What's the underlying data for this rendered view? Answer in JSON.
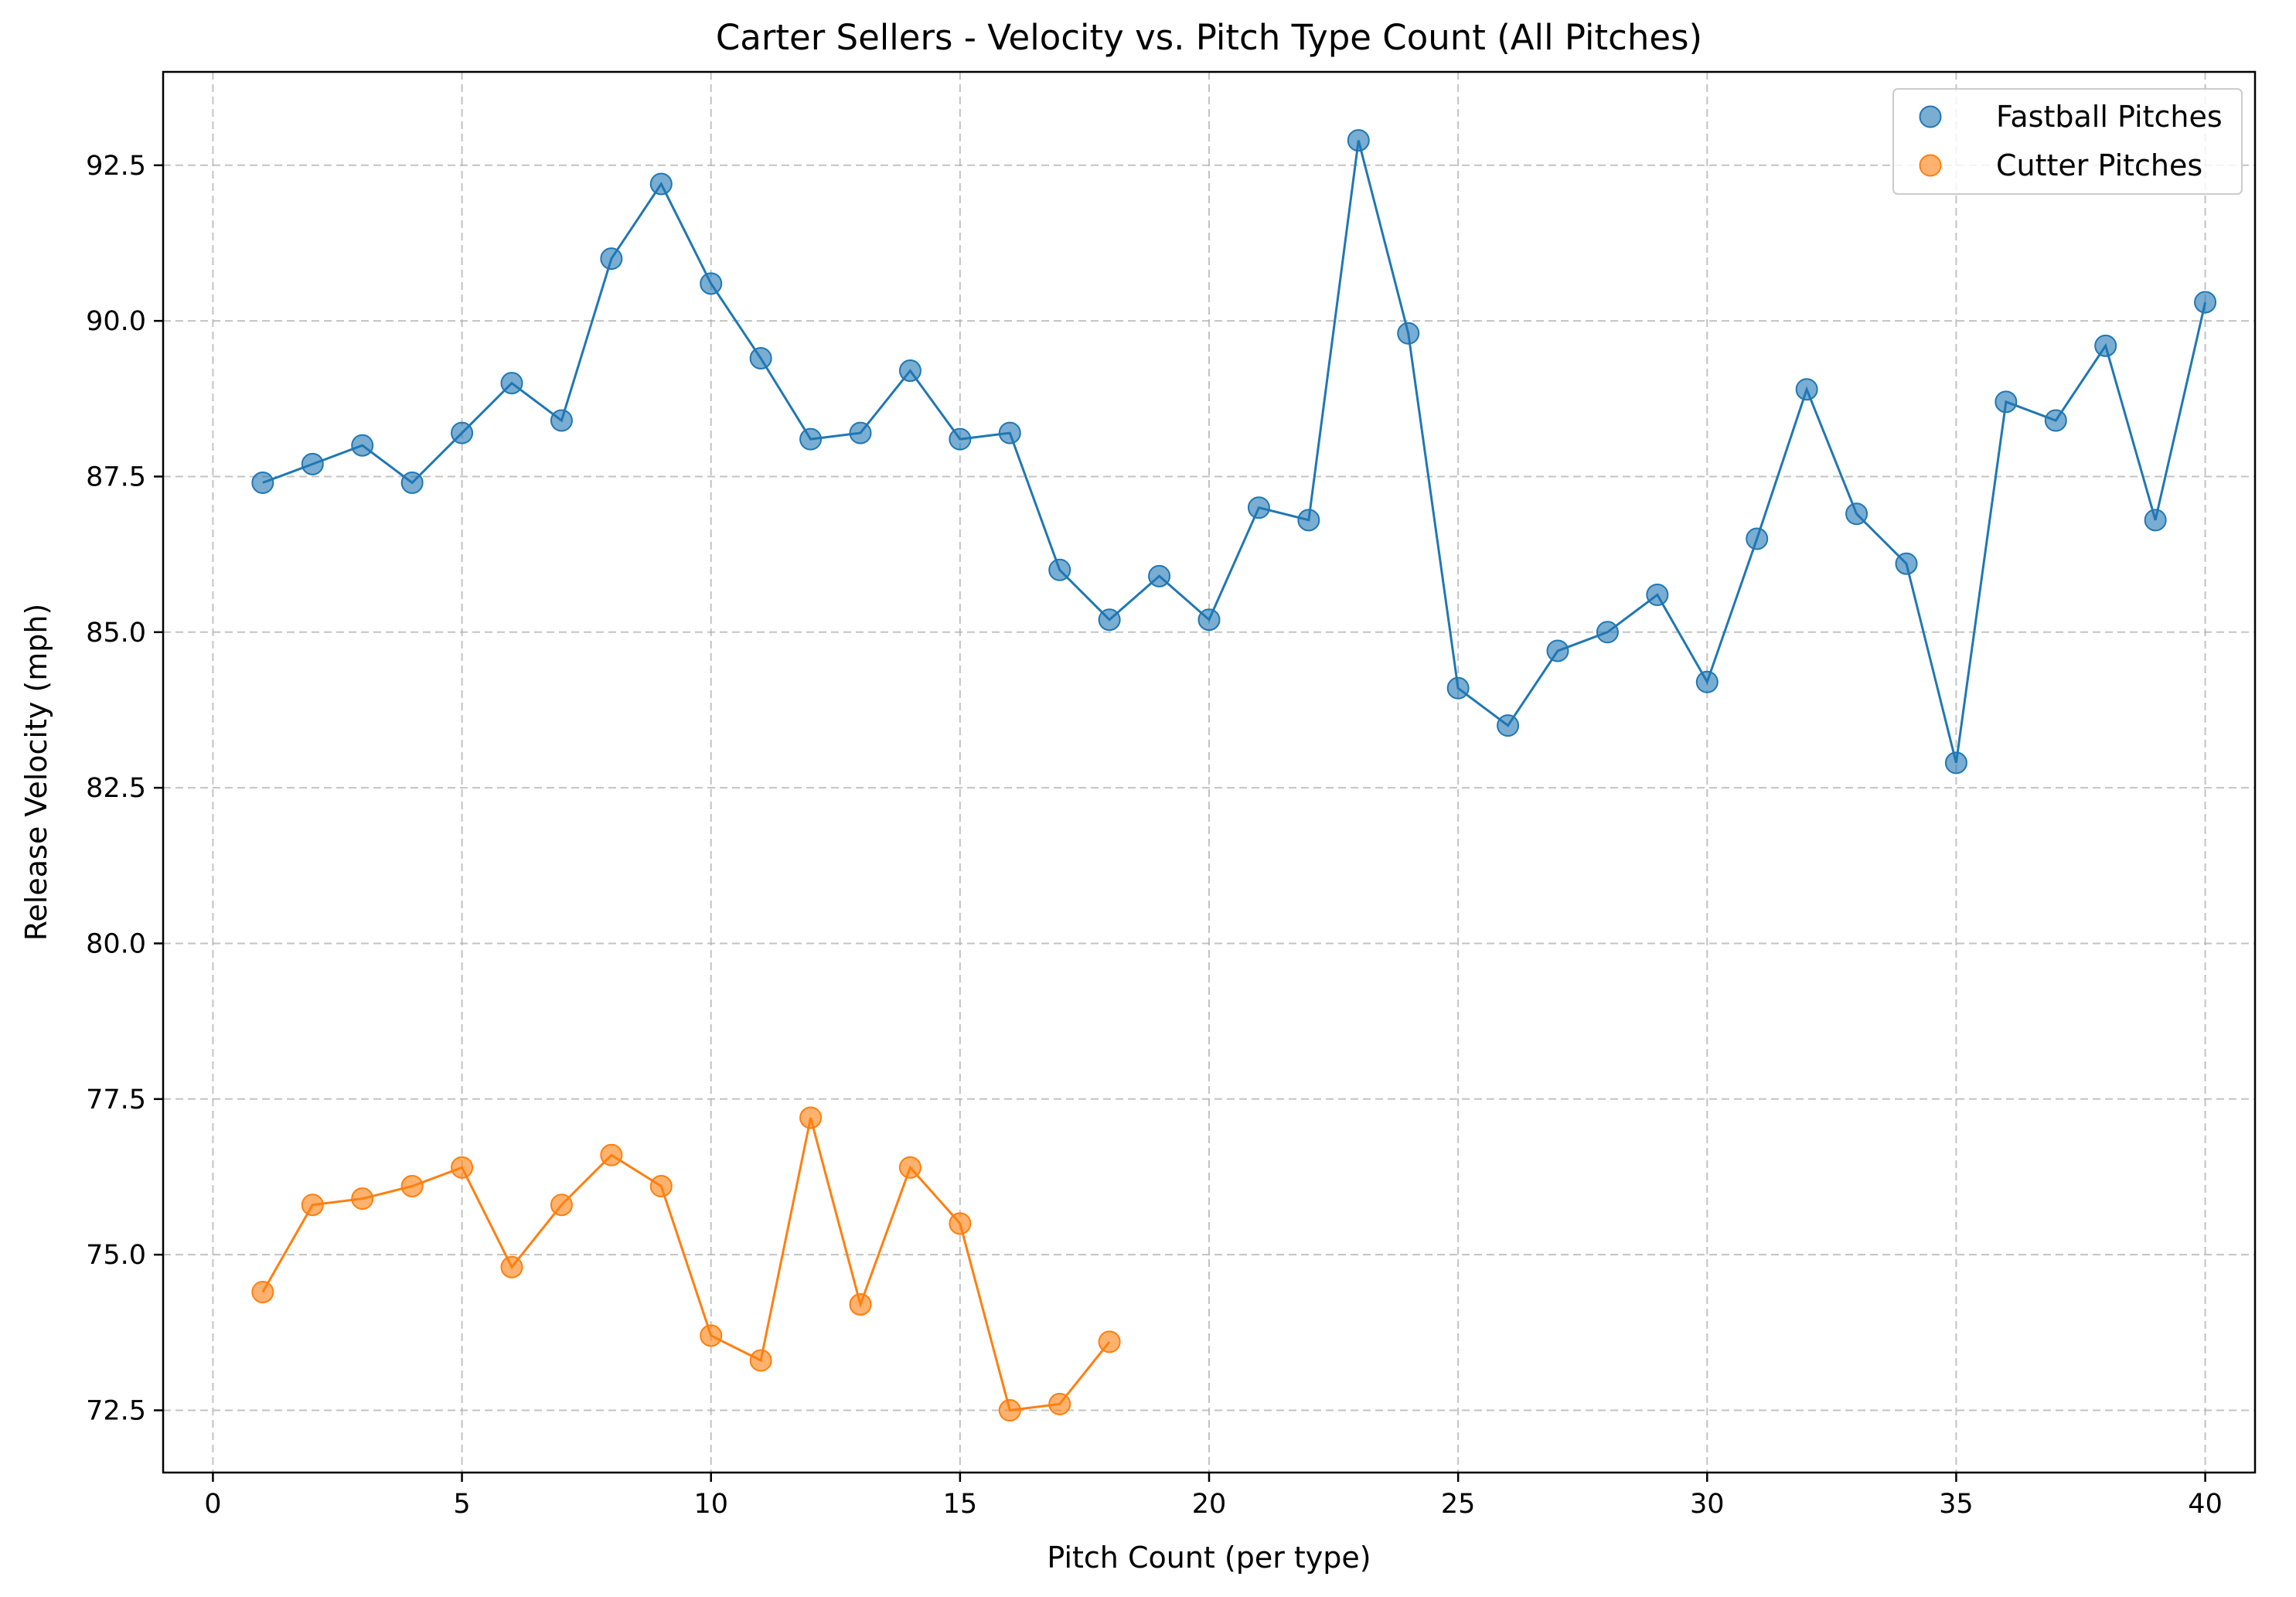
{
  "chart_data": {
    "type": "line",
    "title": "Carter Sellers - Velocity vs. Pitch Type Count (All Pitches)",
    "xlabel": "Pitch Count (per type)",
    "ylabel": "Release Velocity (mph)",
    "xlim": [
      -1,
      41
    ],
    "ylim": [
      71.5,
      94
    ],
    "xticks": [
      0,
      5,
      10,
      15,
      20,
      25,
      30,
      35,
      40
    ],
    "xtick_labels": [
      "0",
      "5",
      "10",
      "15",
      "20",
      "25",
      "30",
      "35",
      "40"
    ],
    "yticks": [
      72.5,
      75.0,
      77.5,
      80.0,
      82.5,
      85.0,
      87.5,
      90.0,
      92.5
    ],
    "ytick_labels": [
      "72.5",
      "75.0",
      "77.5",
      "80.0",
      "82.5",
      "85.0",
      "87.5",
      "90.0",
      "92.5"
    ],
    "grid": true,
    "legend_position": "top-right",
    "series": [
      {
        "name": "Fastball Pitches",
        "color": "#1f77b4",
        "x": [
          1,
          2,
          3,
          4,
          5,
          6,
          7,
          8,
          9,
          10,
          11,
          12,
          13,
          14,
          15,
          16,
          17,
          18,
          19,
          20,
          21,
          22,
          23,
          24,
          25,
          26,
          27,
          28,
          29,
          30,
          31,
          32,
          33,
          34,
          35,
          36,
          37,
          38,
          39,
          40
        ],
        "y": [
          87.4,
          87.7,
          88.0,
          87.4,
          88.2,
          89.0,
          88.4,
          91.0,
          92.2,
          90.6,
          89.4,
          88.1,
          88.2,
          89.2,
          88.1,
          88.2,
          86.0,
          85.2,
          85.9,
          85.2,
          87.0,
          86.8,
          92.9,
          89.8,
          84.1,
          83.5,
          84.7,
          85.0,
          85.6,
          84.2,
          86.5,
          88.9,
          86.9,
          86.1,
          82.9,
          88.7,
          88.4,
          89.6,
          86.8,
          90.3
        ]
      },
      {
        "name": "Cutter Pitches",
        "color": "#ff7f0e",
        "x": [
          1,
          2,
          3,
          4,
          5,
          6,
          7,
          8,
          9,
          10,
          11,
          12,
          13,
          14,
          15,
          16,
          17,
          18
        ],
        "y": [
          74.4,
          75.8,
          75.9,
          76.1,
          76.4,
          74.8,
          75.8,
          76.6,
          76.1,
          73.7,
          73.3,
          77.2,
          74.2,
          76.4,
          75.5,
          72.5,
          72.6,
          73.6
        ]
      }
    ]
  }
}
